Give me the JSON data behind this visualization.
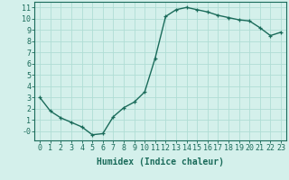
{
  "x": [
    0,
    1,
    2,
    3,
    4,
    5,
    6,
    7,
    8,
    9,
    10,
    11,
    12,
    13,
    14,
    15,
    16,
    17,
    18,
    19,
    20,
    21,
    22,
    23
  ],
  "y": [
    3.0,
    1.8,
    1.2,
    0.8,
    0.4,
    -0.3,
    -0.2,
    1.3,
    2.1,
    2.6,
    3.5,
    6.5,
    10.2,
    10.8,
    11.0,
    10.8,
    10.6,
    10.3,
    10.1,
    9.9,
    9.8,
    9.2,
    8.5,
    8.8
  ],
  "line_color": "#1a6b5a",
  "marker": "+",
  "marker_size": 3,
  "line_width": 1.0,
  "bg_color": "#d4f0eb",
  "grid_color": "#b0ddd5",
  "xlabel": "Humidex (Indice chaleur)",
  "xlabel_fontsize": 7,
  "tick_fontsize": 6,
  "ylim": [
    -0.8,
    11.5
  ],
  "xlim": [
    -0.5,
    23.5
  ],
  "yticks": [
    0,
    1,
    2,
    3,
    4,
    5,
    6,
    7,
    8,
    9,
    10,
    11
  ],
  "ytick_labels": [
    "-0",
    "1",
    "2",
    "3",
    "4",
    "5",
    "6",
    "7",
    "8",
    "9",
    "10",
    "11"
  ],
  "xticks": [
    0,
    1,
    2,
    3,
    4,
    5,
    6,
    7,
    8,
    9,
    10,
    11,
    12,
    13,
    14,
    15,
    16,
    17,
    18,
    19,
    20,
    21,
    22,
    23
  ]
}
